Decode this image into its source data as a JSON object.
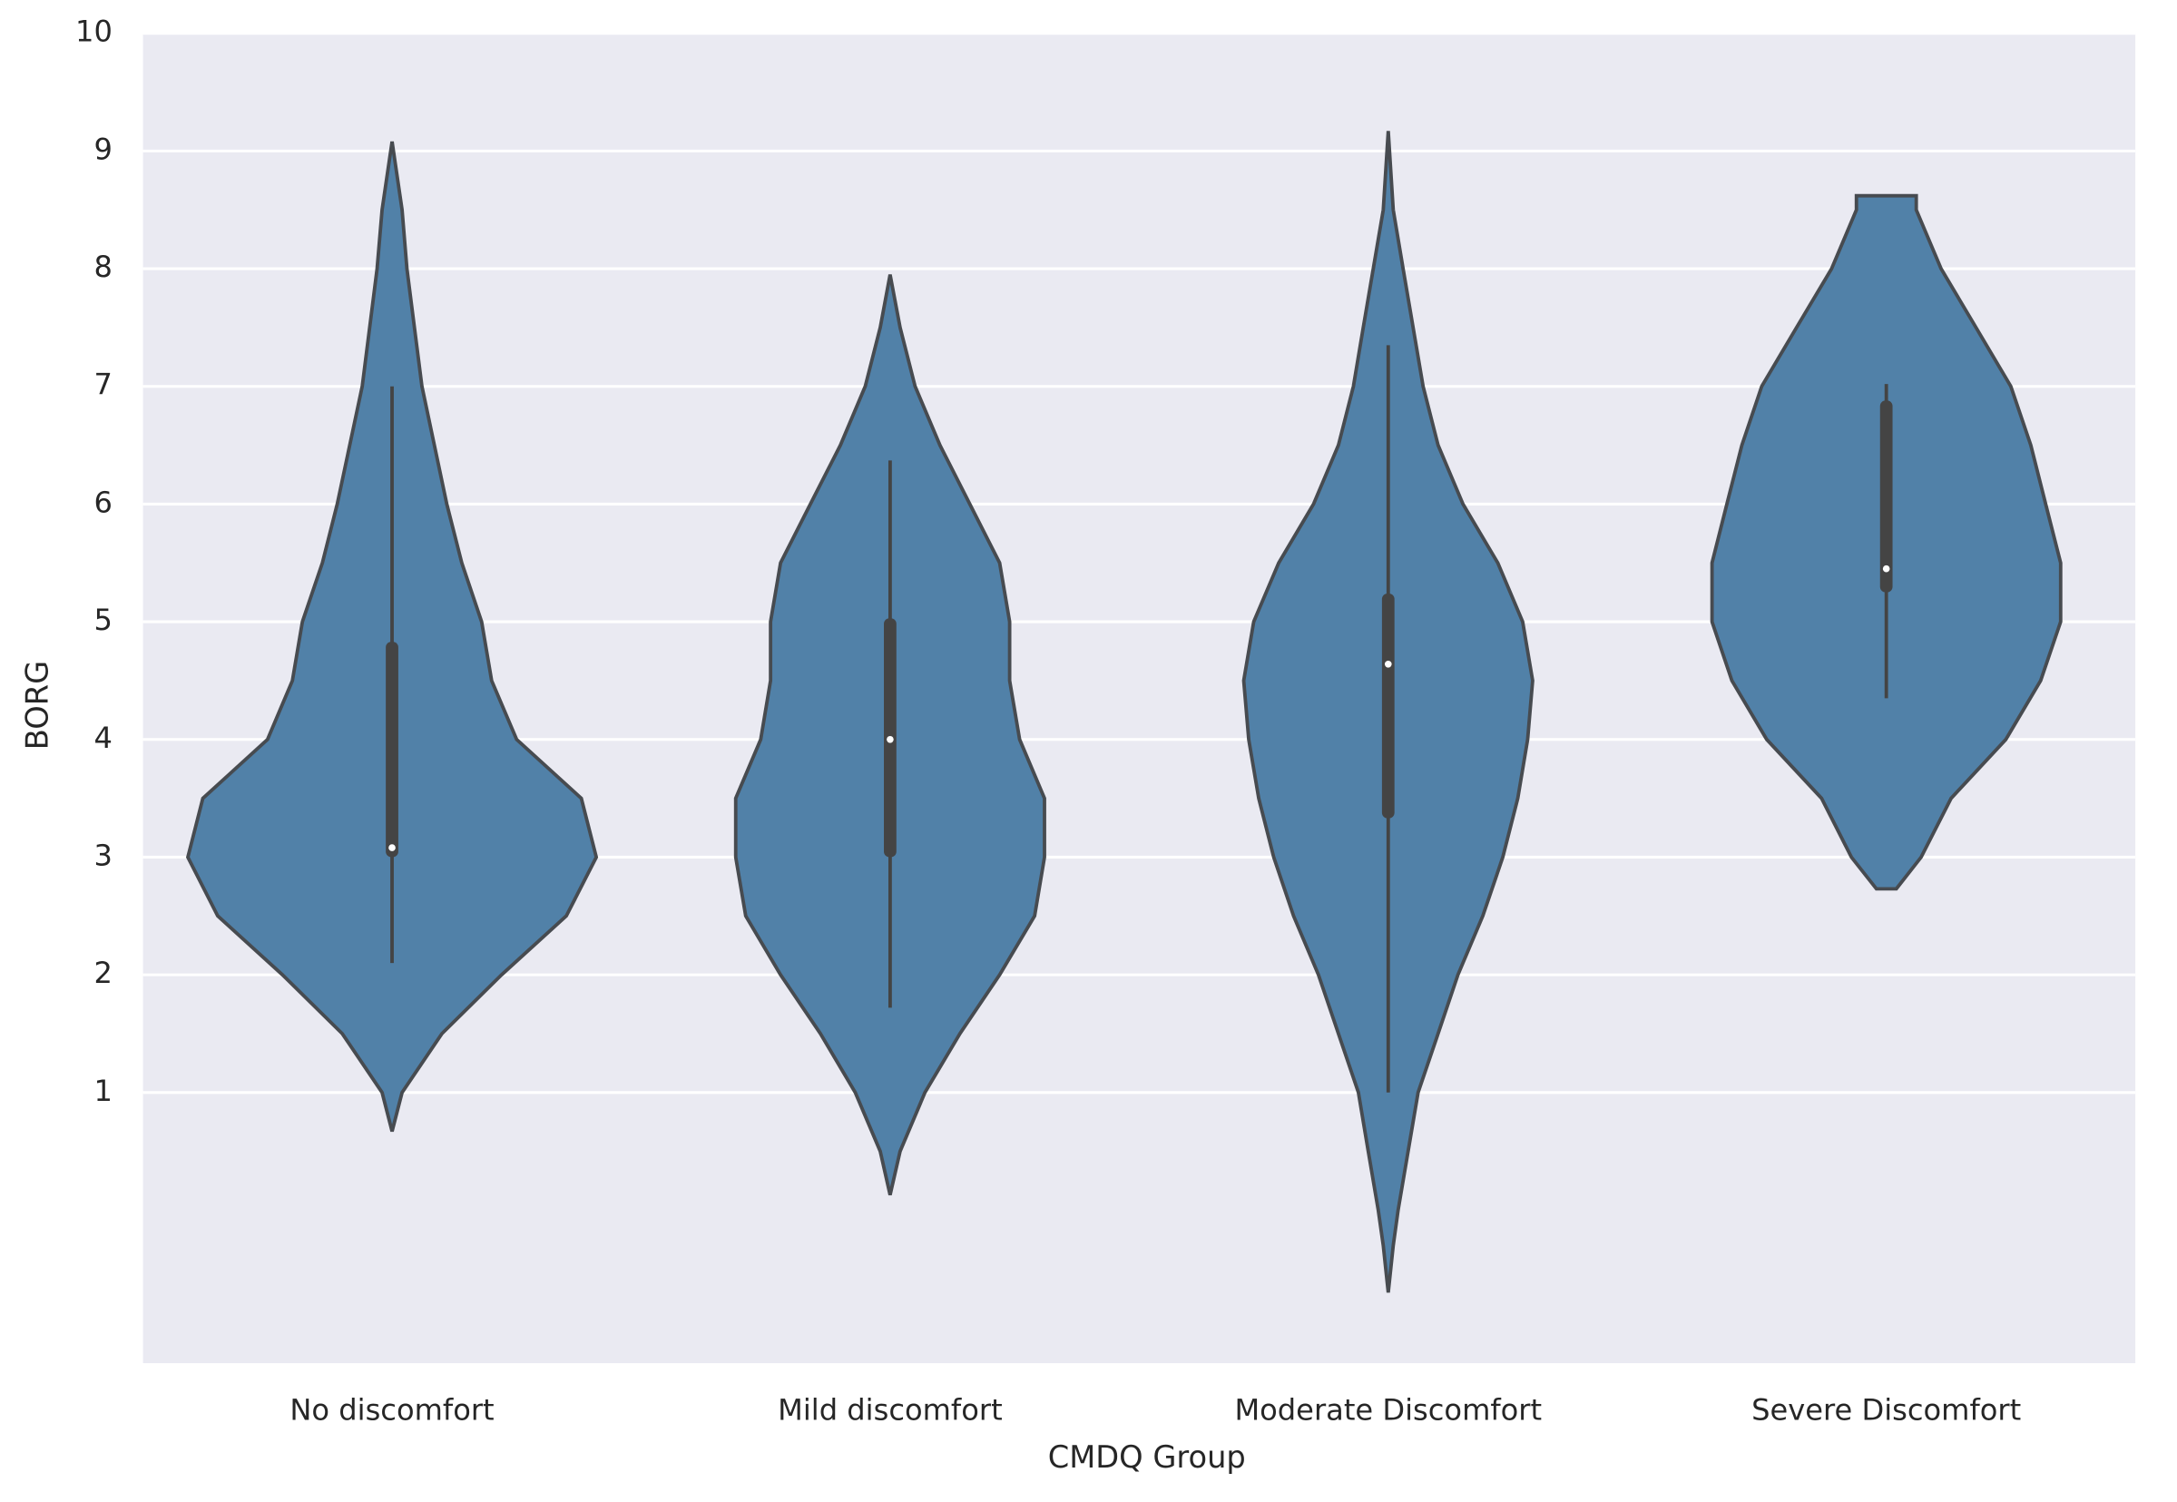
{
  "chart_data": {
    "type": "violin",
    "xlabel": "CMDQ Group",
    "ylabel": "BORG",
    "categories": [
      "No discomfort",
      "Mild discomfort",
      "Moderate Discomfort",
      "Severe Discomfort"
    ],
    "ylim": [
      -1.3,
      10
    ],
    "yticks": [
      1,
      2,
      3,
      4,
      5,
      6,
      7,
      8,
      9,
      10
    ],
    "grid": true,
    "color": "#5181a8",
    "edge_color": "#474b50",
    "box_color": "#444444",
    "violins": [
      {
        "y": [
          0.67,
          1,
          1.5,
          2,
          2.5,
          3,
          3.5,
          4,
          4.5,
          5,
          5.5,
          6,
          7,
          8,
          8.5,
          9.08
        ],
        "density": [
          0,
          0.02,
          0.1,
          0.22,
          0.35,
          0.41,
          0.38,
          0.25,
          0.2,
          0.18,
          0.14,
          0.11,
          0.06,
          0.03,
          0.02,
          0
        ],
        "whisker_low": 2.1,
        "whisker_high": 7.0,
        "q1": 3.0,
        "q3": 4.83,
        "median": 3.08
      },
      {
        "y": [
          0.13,
          0.5,
          1,
          1.5,
          2,
          2.5,
          3,
          3.5,
          4,
          4.5,
          5,
          5.5,
          6,
          6.5,
          7,
          7.5,
          7.95
        ],
        "density": [
          0,
          0.02,
          0.07,
          0.14,
          0.22,
          0.29,
          0.31,
          0.31,
          0.26,
          0.24,
          0.24,
          0.22,
          0.16,
          0.1,
          0.05,
          0.02,
          0
        ],
        "whisker_low": 1.72,
        "whisker_high": 6.37,
        "q1": 3.0,
        "q3": 5.03,
        "median": 4.0
      },
      {
        "y": [
          -0.7,
          -0.3,
          0,
          0.5,
          1,
          1.5,
          2,
          2.5,
          3,
          3.5,
          4,
          4.5,
          5,
          5.5,
          6,
          6.5,
          7,
          7.5,
          8,
          8.5,
          9.17
        ],
        "density": [
          0,
          0.01,
          0.02,
          0.04,
          0.06,
          0.1,
          0.14,
          0.19,
          0.23,
          0.26,
          0.28,
          0.29,
          0.27,
          0.22,
          0.15,
          0.1,
          0.07,
          0.05,
          0.03,
          0.01,
          0
        ],
        "whisker_low": 1.0,
        "whisker_high": 7.35,
        "q1": 3.33,
        "q3": 5.24,
        "median": 4.64
      },
      {
        "y": [
          2.73,
          3,
          3.5,
          4,
          4.5,
          5,
          5.5,
          6,
          6.5,
          7,
          7.5,
          8,
          8.5,
          8.62
        ],
        "density": [
          0.02,
          0.07,
          0.13,
          0.24,
          0.31,
          0.35,
          0.35,
          0.32,
          0.29,
          0.25,
          0.18,
          0.11,
          0.06,
          0.06
        ],
        "whisker_low": 4.35,
        "whisker_high": 7.02,
        "q1": 5.25,
        "q3": 6.88,
        "median": 5.45
      }
    ]
  }
}
